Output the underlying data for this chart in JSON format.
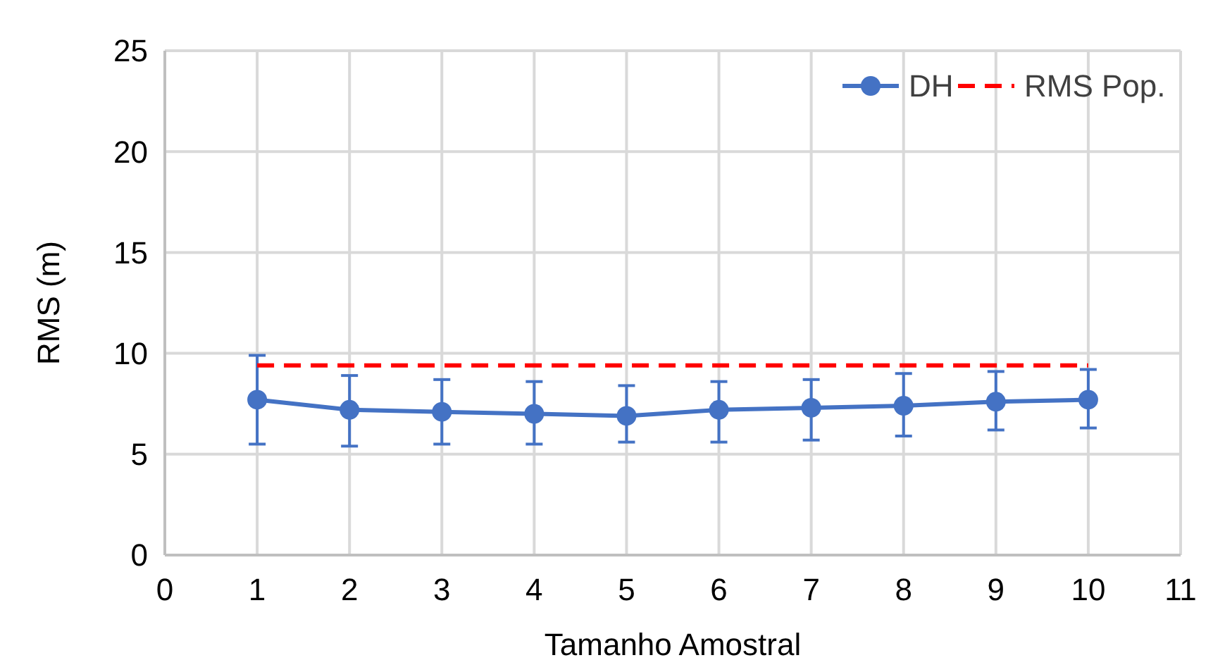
{
  "chart_data": {
    "type": "line",
    "xlabel": "Tamanho Amostral",
    "ylabel": "RMS (m)",
    "x": [
      1,
      2,
      3,
      4,
      5,
      6,
      7,
      8,
      9,
      10
    ],
    "xlim": [
      0,
      11
    ],
    "xticks": [
      0,
      1,
      2,
      3,
      4,
      5,
      6,
      7,
      8,
      9,
      10,
      11
    ],
    "ylim": [
      0,
      25
    ],
    "yticks": [
      0,
      5,
      10,
      15,
      20,
      25
    ],
    "grid": true,
    "legend": "top right",
    "series": [
      {
        "name": "DH",
        "color": "#4472c4",
        "marker": "circle",
        "line_style": "solid",
        "values": [
          7.7,
          7.2,
          7.1,
          7.0,
          6.9,
          7.2,
          7.3,
          7.4,
          7.6,
          7.7
        ],
        "errors": [
          [
            5.5,
            9.9
          ],
          [
            5.4,
            8.9
          ],
          [
            5.5,
            8.7
          ],
          [
            5.5,
            8.6
          ],
          [
            5.6,
            8.4
          ],
          [
            5.6,
            8.6
          ],
          [
            5.7,
            8.7
          ],
          [
            5.9,
            9.0
          ],
          [
            6.2,
            9.1
          ],
          [
            6.3,
            9.2
          ]
        ]
      },
      {
        "name": "RMS Pop.",
        "color": "#ff0000",
        "marker": "none",
        "line_style": "dashed",
        "values": [
          9.4,
          9.4,
          9.4,
          9.4,
          9.4,
          9.4,
          9.4,
          9.4,
          9.4,
          9.4
        ]
      }
    ]
  }
}
